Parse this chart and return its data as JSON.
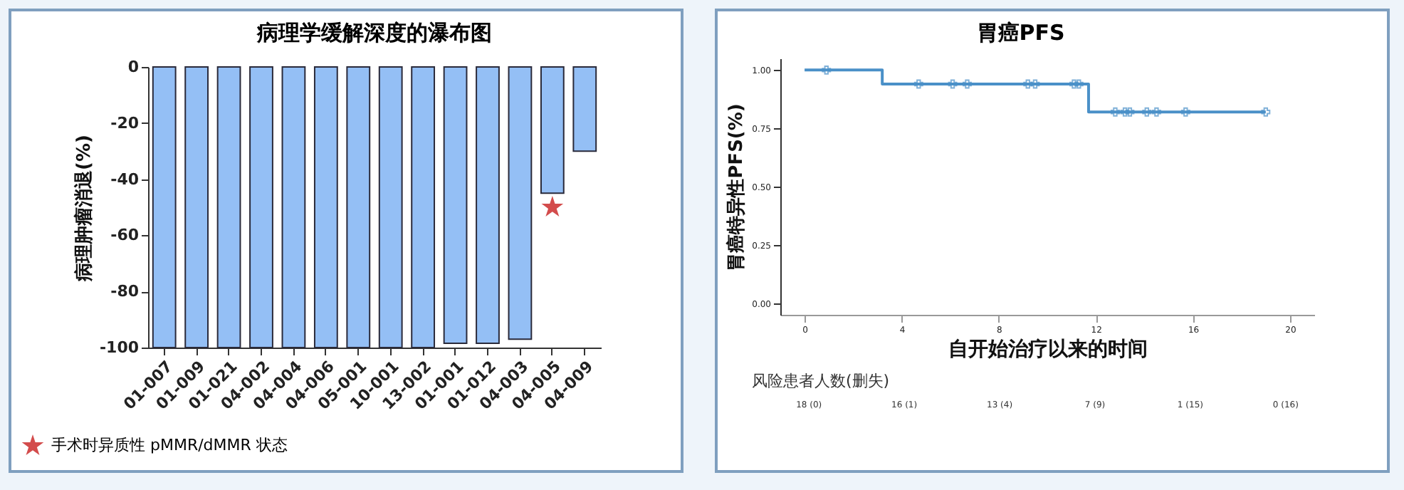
{
  "chart_data": [
    {
      "type": "bar",
      "title": "病理学缓解深度的瀑布图",
      "ylabel": "病理肿瘤消退(%)",
      "categories": [
        "01-007",
        "01-009",
        "01-021",
        "04-002",
        "04-004",
        "04-006",
        "05-001",
        "10-001",
        "13-002",
        "01-001",
        "01-012",
        "04-003",
        "04-005",
        "04-009"
      ],
      "series": [
        {
          "color": "#94bff5",
          "values": [
            -100,
            -100,
            -100,
            -100,
            -100,
            -100,
            -100,
            -100,
            -100,
            -98.5,
            -98.5,
            -97,
            -45,
            -30
          ]
        },
        {
          "type": "scatter",
          "name": "手术时异质性 pMMR/dMMR 状态",
          "color": "#c00000",
          "marker": "star",
          "x": [
            "04-005"
          ],
          "values": [
            -50
          ]
        }
      ],
      "ylim": [
        -100,
        0
      ],
      "yticks": [
        0,
        -20,
        -40,
        -60,
        -80,
        -100
      ],
      "legend": "bottom left"
    },
    {
      "type": "step",
      "title": "胃癌PFS",
      "xlabel": "自开始治疗以来的时间",
      "ylabel": "胃癌特异性PFS(%)",
      "series": [
        {
          "color": "#4a90c8",
          "x": [
            0,
            3.2,
            11.7,
            19
          ],
          "values": [
            1,
            0.94,
            0.82,
            0.82
          ]
        },
        {
          "type": "scatter",
          "color": "#4a90c8",
          "marker": "cross",
          "x": [
            0.9,
            4.7,
            6.1,
            6.7,
            9.2,
            9.5,
            11.1,
            11.3,
            12.8,
            13.2,
            13.4,
            14.1,
            14.5,
            15.7,
            19
          ],
          "values": [
            1,
            0.94,
            0.94,
            0.94,
            0.94,
            0.94,
            0.94,
            0.94,
            0.82,
            0.82,
            0.82,
            0.82,
            0.82,
            0.82,
            0.82
          ]
        }
      ],
      "xlim": [
        -1,
        21
      ],
      "xticks": [
        0,
        4,
        8,
        12,
        16,
        20
      ],
      "ylim": [
        -0.05,
        1.05
      ],
      "yticks": [
        {
          "value": 0,
          "label": "0.00"
        },
        {
          "value": 0.25,
          "label": "0.25"
        },
        {
          "value": 0.5,
          "label": "0.50"
        },
        {
          "value": 0.75,
          "label": "0.75"
        },
        {
          "value": 1,
          "label": "1.00"
        }
      ],
      "annotations": [
        "风险患者人数(删失)",
        "18 (0)",
        "16 (1)",
        "13 (4)",
        "7 (9)",
        "1 (15)",
        "0 (16)"
      ]
    }
  ]
}
